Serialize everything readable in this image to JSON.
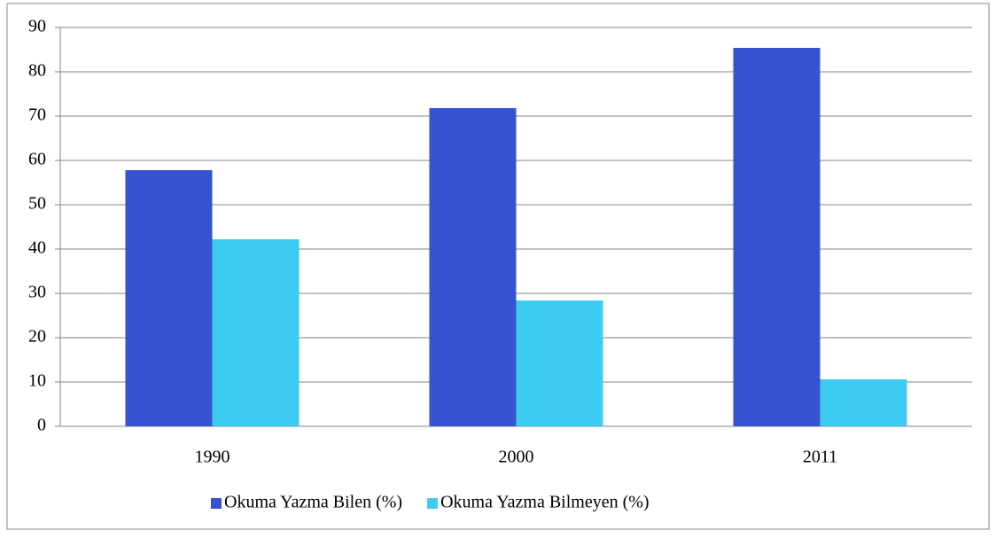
{
  "chart_data": {
    "type": "bar",
    "categories": [
      "1990",
      "2000",
      "2011"
    ],
    "series": [
      {
        "name": "Okuma Yazma Bilen (%)",
        "color": "#3553d0",
        "values": [
          57.8,
          71.8,
          85.4
        ]
      },
      {
        "name": "Okuma Yazma Bilmeyen (%)",
        "color": "#3ecbf2",
        "values": [
          42.2,
          28.4,
          10.6
        ]
      }
    ],
    "ylim": [
      0,
      90
    ],
    "yticks": [
      0,
      10,
      20,
      30,
      40,
      50,
      60,
      70,
      80,
      90
    ],
    "grid": true,
    "legend": "bottom"
  }
}
